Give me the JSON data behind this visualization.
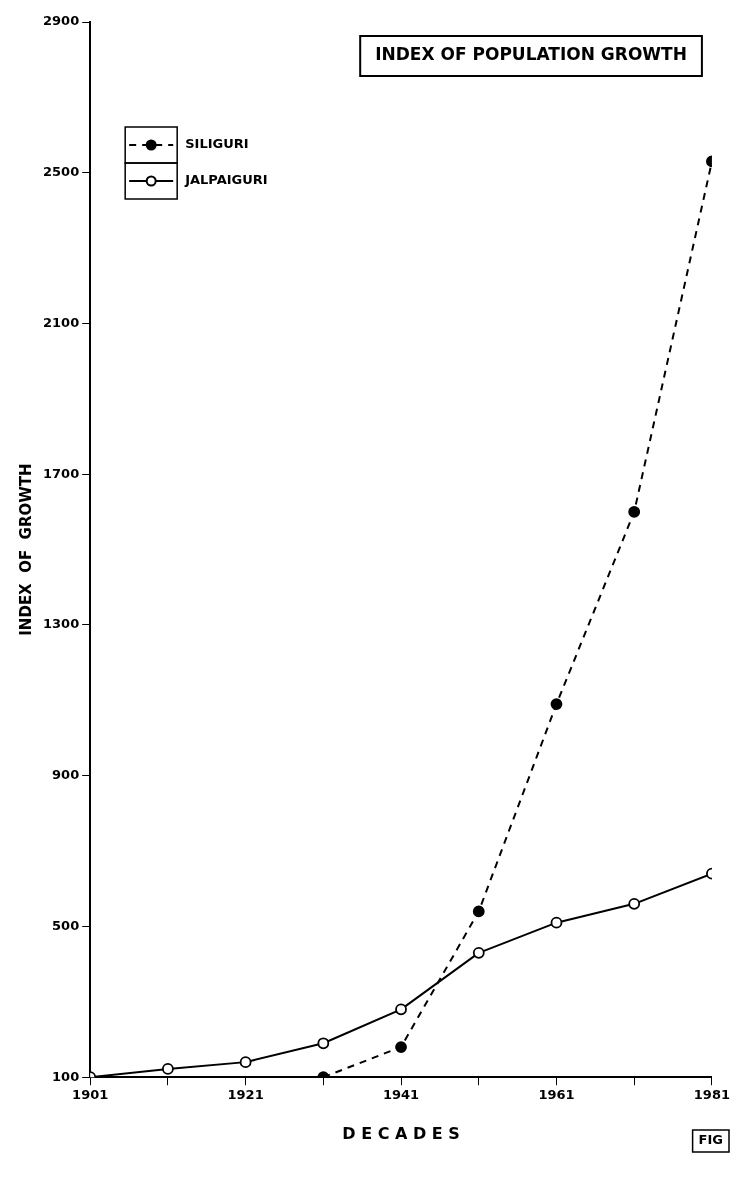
{
  "chart_data": {
    "type": "line",
    "title": "INDEX OF POPULATION GROWTH",
    "xlabel": "D E C A D E S",
    "ylabel": "INDEX  OF  GROWTH",
    "x": [
      1901,
      1911,
      1921,
      1931,
      1941,
      1951,
      1961,
      1971,
      1981
    ],
    "series": [
      {
        "name": "SILIGURI",
        "color": "#000000",
        "values": [
          null,
          null,
          null,
          100,
          180,
          540,
          1090,
          1600,
          2530
        ],
        "marker": "circle",
        "line_style": "dashed"
      },
      {
        "name": "JALPAIGURI",
        "color": "#000000",
        "values": [
          100,
          122,
          140,
          190,
          280,
          430,
          510,
          560,
          640
        ],
        "marker": "circle",
        "line_style": "solid"
      }
    ],
    "xlim": [
      1901,
      1981
    ],
    "xticks": [
      1901,
      {
        "value": 1911,
        "label": null
      },
      1921,
      {
        "value": 1931,
        "label": null
      },
      1941,
      {
        "value": 1951,
        "label": null
      },
      1961,
      {
        "value": 1971,
        "label": null
      },
      1981
    ],
    "ylim": [
      100,
      2900
    ],
    "yticks": [
      100,
      500,
      900,
      1300,
      1700,
      2100,
      2500,
      2900
    ],
    "grid": false,
    "legend": "top left",
    "annotations": [
      "FIG"
    ]
  }
}
